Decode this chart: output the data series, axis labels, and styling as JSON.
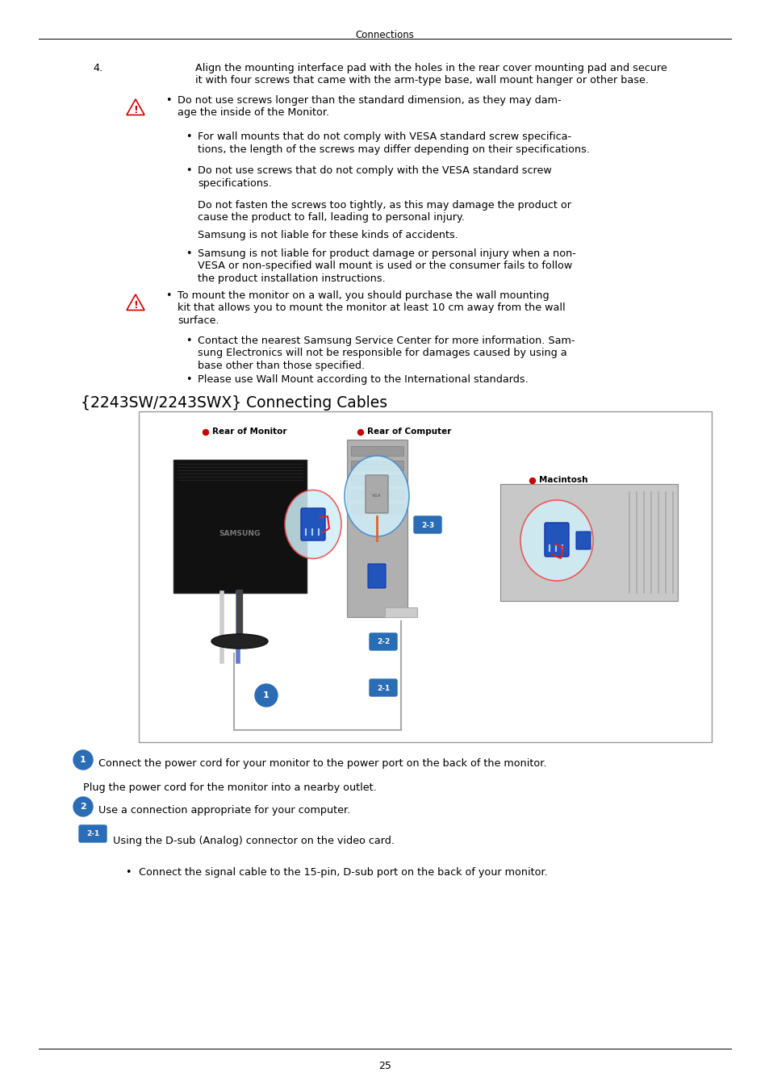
{
  "page_header": "Connections",
  "section_title": "{2243SW/2243SWX} Connecting Cables",
  "item4_label": "4.",
  "item4_line1": "Align the mounting interface pad with the holes in the rear cover mounting pad and secure",
  "item4_line2": "it with four screws that came with the arm-type base, wall mount hanger or other base.",
  "warn1_line1": "Do not use screws longer than the standard dimension, as they may dam-",
  "warn1_line2": "age the inside of the Monitor.",
  "b1_line1": "For wall mounts that do not comply with VESA standard screw specifica-",
  "b1_line2": "tions, the length of the screws may differ depending on their specifications.",
  "b2_line1": "Do not use screws that do not comply with the VESA standard screw",
  "b2_line2": "specifications.",
  "p1_line1": "Do not fasten the screws too tightly, as this may damage the product or",
  "p1_line2": "cause the product to fall, leading to personal injury.",
  "p2": "Samsung is not liable for these kinds of accidents.",
  "b3_line1": "Samsung is not liable for product damage or personal injury when a non-",
  "b3_line2": "VESA or non-specified wall mount is used or the consumer fails to follow",
  "b3_line3": "the product installation instructions.",
  "warn2_line1": "To mount the monitor on a wall, you should purchase the wall mounting",
  "warn2_line2": "kit that allows you to mount the monitor at least 10 cm away from the wall",
  "warn2_line3": "surface.",
  "b4_line1": "Contact the nearest Samsung Service Center for more information. Sam-",
  "b4_line2": "sung Electronics will not be responsible for damages caused by using a",
  "b4_line3": "base other than those specified.",
  "b5": "Please use Wall Mount according to the International standards.",
  "c1_text": "Connect the power cord for your monitor to the power port on the back of the monitor.",
  "plug_text": "Plug the power cord for the monitor into a nearby outlet.",
  "c2_text": "Use a connection appropriate for your computer.",
  "c21_text": "Using the D-sub (Analog) connector on the video card.",
  "bullet_last": "Connect the signal cable to the 15-pin, D-sub port on the back of your monitor.",
  "page_number": "25",
  "bg_color": "#ffffff",
  "text_color": "#000000",
  "blue_badge": "#2a6db5",
  "badge_text": "#ffffff",
  "warn_tri_fill": "#ffffff",
  "warn_tri_edge": "#cc0000",
  "warn_excl": "#cc0000",
  "red_dot": "#cc0000",
  "diag_border": "#999999",
  "diag_bg": "#ffffff"
}
